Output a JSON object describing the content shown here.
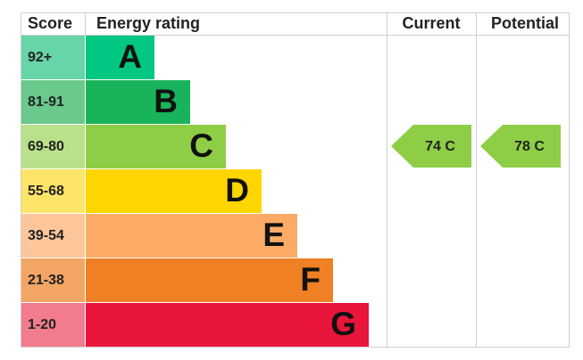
{
  "header": {
    "score": "Score",
    "rating": "Energy rating",
    "current": "Current",
    "potential": "Potential"
  },
  "rows": [
    {
      "score": "92+",
      "band": "A"
    },
    {
      "score": "81-91",
      "band": "B"
    },
    {
      "score": "69-80",
      "band": "C"
    },
    {
      "score": "55-68",
      "band": "D"
    },
    {
      "score": "39-54",
      "band": "E"
    },
    {
      "score": "21-38",
      "band": "F"
    },
    {
      "score": "1-20",
      "band": "G"
    }
  ],
  "current": {
    "label": "74 C"
  },
  "potential": {
    "label": "78 C"
  }
}
